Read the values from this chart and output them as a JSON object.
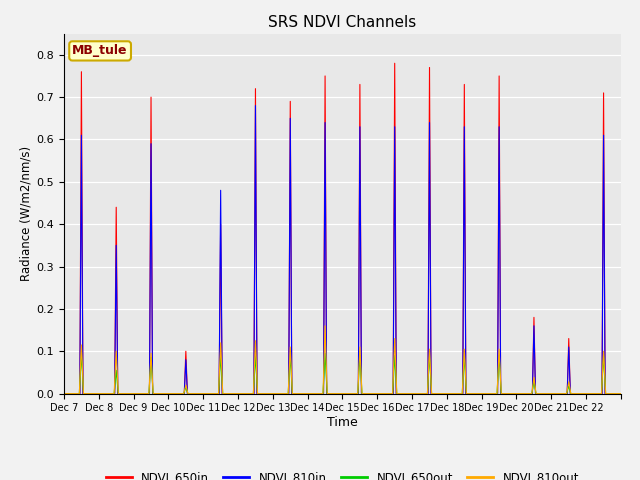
{
  "title": "SRS NDVI Channels",
  "xlabel": "Time",
  "ylabel": "Radiance (W/m2/nm/s)",
  "site_label": "MB_tule",
  "ylim": [
    0.0,
    0.85
  ],
  "background_color": "#e8e8e8",
  "fig_background": "#f2f2f2",
  "colors": {
    "NDVI_650in": "#ff0000",
    "NDVI_810in": "#0000ff",
    "NDVI_650out": "#00cc00",
    "NDVI_810out": "#ffaa00"
  },
  "num_days": 16,
  "start_day": 7,
  "xtick_labels": [
    "Dec 7",
    "Dec 8",
    "Dec 9",
    "Dec 10",
    "Dec 11",
    "Dec 12",
    "Dec 13",
    "Dec 14",
    "Dec 15",
    "Dec 16",
    "Dec 17",
    "Dec 18",
    "Dec 19",
    "Dec 20",
    "Dec 21",
    "Dec 22"
  ],
  "day_peaks_650in": [
    0.76,
    0.44,
    0.7,
    0.1,
    0.4,
    0.72,
    0.69,
    0.75,
    0.73,
    0.78,
    0.77,
    0.73,
    0.75,
    0.18,
    0.13,
    0.71
  ],
  "day_peaks_810in": [
    0.61,
    0.35,
    0.59,
    0.08,
    0.48,
    0.68,
    0.65,
    0.64,
    0.63,
    0.63,
    0.64,
    0.63,
    0.63,
    0.16,
    0.11,
    0.61
  ],
  "day_peaks_650out": [
    0.095,
    0.055,
    0.085,
    0.015,
    0.09,
    0.09,
    0.09,
    0.095,
    0.09,
    0.09,
    0.09,
    0.09,
    0.09,
    0.028,
    0.018,
    0.09
  ],
  "day_peaks_810out": [
    0.115,
    0.1,
    0.095,
    0.02,
    0.12,
    0.125,
    0.11,
    0.16,
    0.11,
    0.13,
    0.105,
    0.105,
    0.105,
    0.038,
    0.028,
    0.1
  ]
}
